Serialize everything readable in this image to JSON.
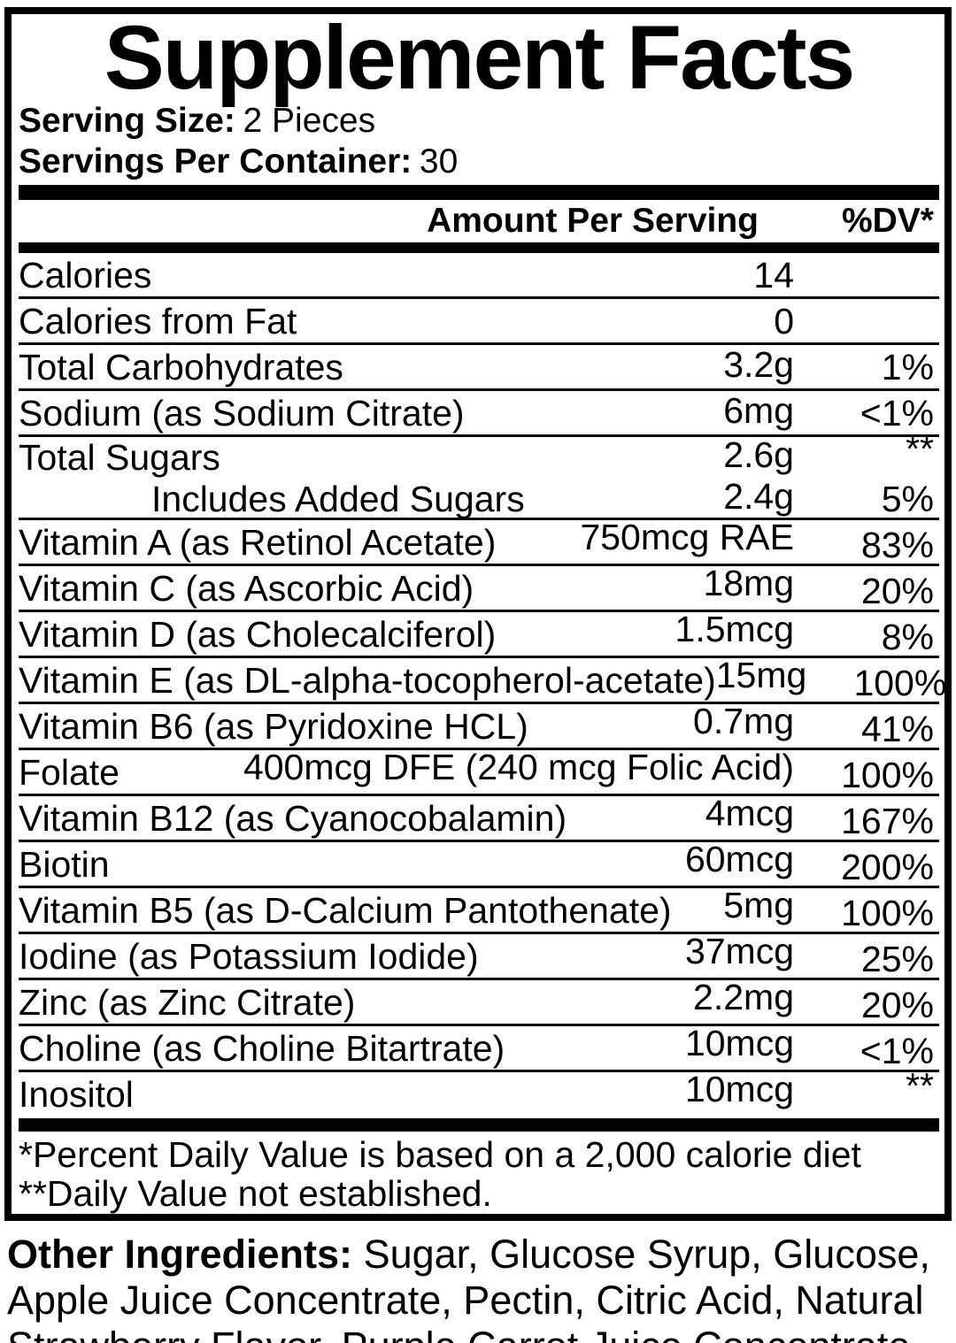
{
  "title": "Supplement Facts",
  "serving": {
    "size_label": "Serving Size:",
    "size_value": "2 Pieces",
    "container_label": "Servings Per Container:",
    "container_value": "30"
  },
  "table": {
    "header": {
      "amount": "Amount Per Serving",
      "dv": "%DV*"
    },
    "rows": [
      {
        "name": "Calories",
        "amount": "14",
        "dv": ""
      },
      {
        "name": "Calories from Fat",
        "amount": "0",
        "dv": ""
      },
      {
        "name": "Total Carbohydrates",
        "amount": "3.2g",
        "dv": "1%"
      },
      {
        "name": "Sodium (as Sodium Citrate)",
        "amount": "6mg",
        "dv": "<1%"
      },
      {
        "name": "Total Sugars",
        "amount": "2.6g",
        "dv": "**",
        "no_divider": true,
        "half": true
      },
      {
        "name": "Includes Added Sugars",
        "amount": "2.4g",
        "dv": "5%",
        "indent": true,
        "half": true
      },
      {
        "name": "Vitamin A (as Retinol Acetate)",
        "amount": "750mcg RAE",
        "dv": "83%"
      },
      {
        "name": "Vitamin C (as Ascorbic Acid)",
        "amount": "18mg",
        "dv": "20%"
      },
      {
        "name": "Vitamin D (as Cholecalciferol)",
        "amount": "1.5mcg",
        "dv": "8%"
      },
      {
        "name": "Vitamin E (as DL-alpha-tocopherol-acetate)",
        "amount": "15mg",
        "dv": "100%"
      },
      {
        "name": "Vitamin B6 (as Pyridoxine HCL)",
        "amount": "0.7mg",
        "dv": "41%"
      },
      {
        "name": "Folate",
        "amount": "400mcg DFE (240 mcg Folic Acid)",
        "dv": "100%"
      },
      {
        "name": "Vitamin B12 (as Cyanocobalamin)",
        "amount": "4mcg",
        "dv": "167%"
      },
      {
        "name": "Biotin",
        "amount": "60mcg",
        "dv": "200%"
      },
      {
        "name": "Vitamin B5 (as D-Calcium Pantothenate)",
        "amount": "5mg",
        "dv": "100%"
      },
      {
        "name": "Iodine (as Potassium Iodide)",
        "amount": "37mcg",
        "dv": "25%"
      },
      {
        "name": "Zinc (as Zinc Citrate)",
        "amount": "2.2mg",
        "dv": "20%"
      },
      {
        "name": "Choline (as Choline Bitartrate)",
        "amount": "10mcg",
        "dv": "<1%"
      },
      {
        "name": "Inositol",
        "amount": "10mcg",
        "dv": "**",
        "no_divider": true
      }
    ]
  },
  "footnotes": [
    "*Percent Daily Value is based on a 2,000 calorie diet",
    "**Daily Value not established."
  ],
  "other_ingredients": {
    "label": "Other Ingredients:",
    "text": "Sugar, Glucose Syrup, Glucose, Apple Juice Concentrate, Pectin, Citric Acid, Natural Strawberry Flavor, Purple Carrot Juice Concentrate."
  },
  "colors": {
    "text": "#000000",
    "background": "#ffffff"
  }
}
